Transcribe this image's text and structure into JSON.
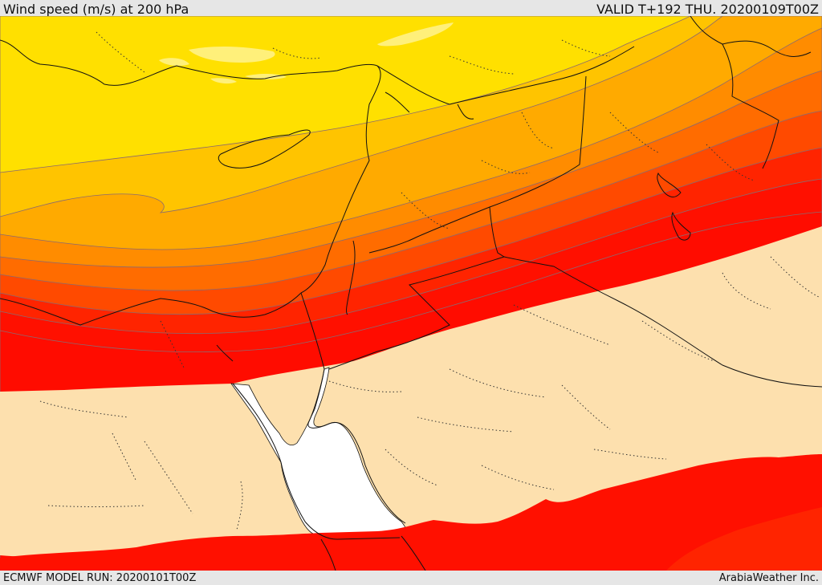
{
  "header": {
    "title": "Wind speed (m/s) at 200 hPa",
    "valid": "VALID T+192 THU. 20200109T00Z"
  },
  "footer": {
    "model_run": "ECMWF MODEL RUN: 20200101T00Z",
    "credit": "ArabiaWeather Inc."
  },
  "colors": {
    "calm": "#fde0ae",
    "sea": "#ffffff",
    "band_1": "#ffe000",
    "band_2": "#ffc400",
    "band_3": "#ffaa00",
    "band_4": "#ff8c00",
    "band_5": "#ff6c00",
    "band_6": "#ff4a00",
    "band_7": "#ff2400",
    "band_8": "#ff1000",
    "band_light": "#fff07a"
  }
}
